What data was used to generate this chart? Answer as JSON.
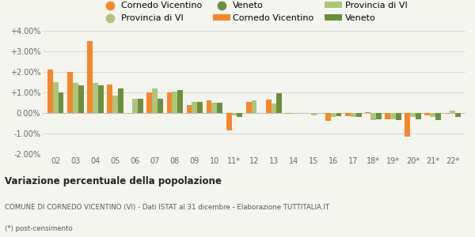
{
  "categories": [
    "02",
    "03",
    "04",
    "05",
    "06",
    "07",
    "08",
    "09",
    "10",
    "11*",
    "12",
    "13",
    "14",
    "15",
    "16",
    "17",
    "18*",
    "19*",
    "20*",
    "21*",
    "22*"
  ],
  "cornedo": [
    2.1,
    2.0,
    3.5,
    1.4,
    0.0,
    1.0,
    1.0,
    0.4,
    0.6,
    -0.85,
    0.55,
    0.65,
    -0.05,
    0.0,
    -0.4,
    -0.15,
    0.05,
    -0.3,
    -1.15,
    -0.1,
    -0.05
  ],
  "provincia": [
    1.5,
    1.45,
    1.45,
    0.85,
    0.7,
    1.2,
    1.05,
    0.55,
    0.5,
    -0.1,
    0.6,
    0.45,
    0.0,
    -0.1,
    -0.2,
    -0.2,
    -0.35,
    -0.3,
    -0.2,
    -0.2,
    0.1
  ],
  "veneto": [
    1.0,
    1.35,
    1.35,
    1.2,
    0.7,
    0.7,
    1.1,
    0.55,
    0.5,
    -0.2,
    0.0,
    0.95,
    0.0,
    0.0,
    -0.15,
    -0.2,
    -0.3,
    -0.35,
    -0.3,
    -0.35,
    -0.2
  ],
  "color_cornedo": "#f5872a",
  "color_provincia": "#adc57a",
  "color_veneto": "#6b8f3e",
  "label_cornedo": "Cornedo Vicentino",
  "label_provincia": "Provincia di VI",
  "label_veneto": "Veneto",
  "title": "Variazione percentuale della popolazione",
  "subtitle": "COMUNE DI CORNEDO VICENTINO (VI) - Dati ISTAT al 31 dicembre - Elaborazione TUTTITALIA.IT",
  "footnote": "(*) post-censimento",
  "ylim": [
    -2.0,
    4.0
  ],
  "yticks": [
    -2.0,
    -1.0,
    0.0,
    1.0,
    2.0,
    3.0,
    4.0
  ],
  "bg_color": "#f5f5f0",
  "bar_width": 0.27
}
